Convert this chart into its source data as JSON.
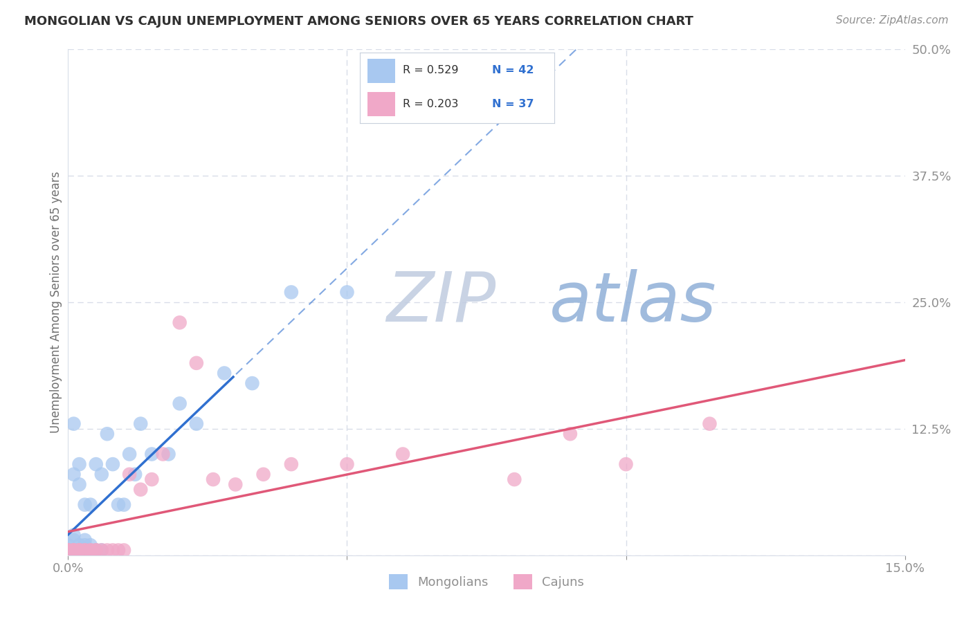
{
  "title": "MONGOLIAN VS CAJUN UNEMPLOYMENT AMONG SENIORS OVER 65 YEARS CORRELATION CHART",
  "source": "Source: ZipAtlas.com",
  "ylabel": "Unemployment Among Seniors over 65 years",
  "xlim": [
    0,
    0.15
  ],
  "ylim": [
    0,
    0.5
  ],
  "mongolian_R": 0.529,
  "mongolian_N": 42,
  "cajun_R": 0.203,
  "cajun_N": 37,
  "mongolian_color": "#a8c8f0",
  "cajun_color": "#f0a8c8",
  "mongolian_line_color": "#3070d0",
  "cajun_line_color": "#e05878",
  "title_color": "#303030",
  "source_color": "#909090",
  "ylabel_color": "#707070",
  "tick_color": "#909090",
  "background_color": "#ffffff",
  "watermark_zip_color": "#c0cce0",
  "watermark_atlas_color": "#90b0d8",
  "grid_color": "#d8dde8",
  "mongolian_x": [
    0.0,
    0.0,
    0.0,
    0.0,
    0.0,
    0.001,
    0.001,
    0.001,
    0.001,
    0.001,
    0.002,
    0.002,
    0.002,
    0.002,
    0.002,
    0.003,
    0.003,
    0.003,
    0.003,
    0.003,
    0.004,
    0.004,
    0.004,
    0.005,
    0.005,
    0.006,
    0.006,
    0.007,
    0.008,
    0.009,
    0.01,
    0.011,
    0.012,
    0.013,
    0.015,
    0.018,
    0.02,
    0.023,
    0.028,
    0.033,
    0.04,
    0.05
  ],
  "mongolian_y": [
    0.005,
    0.005,
    0.01,
    0.005,
    0.005,
    0.005,
    0.015,
    0.02,
    0.08,
    0.13,
    0.005,
    0.005,
    0.01,
    0.07,
    0.09,
    0.005,
    0.005,
    0.01,
    0.015,
    0.05,
    0.005,
    0.01,
    0.05,
    0.005,
    0.09,
    0.005,
    0.08,
    0.12,
    0.09,
    0.05,
    0.05,
    0.1,
    0.08,
    0.13,
    0.1,
    0.1,
    0.15,
    0.13,
    0.18,
    0.17,
    0.26,
    0.26
  ],
  "cajun_x": [
    0.0,
    0.0,
    0.0,
    0.0,
    0.001,
    0.001,
    0.001,
    0.002,
    0.002,
    0.002,
    0.003,
    0.003,
    0.004,
    0.004,
    0.005,
    0.005,
    0.006,
    0.007,
    0.008,
    0.009,
    0.01,
    0.011,
    0.013,
    0.015,
    0.017,
    0.02,
    0.023,
    0.026,
    0.03,
    0.035,
    0.04,
    0.05,
    0.06,
    0.08,
    0.09,
    0.1,
    0.115
  ],
  "cajun_y": [
    0.005,
    0.005,
    0.005,
    0.005,
    0.005,
    0.005,
    0.005,
    0.005,
    0.005,
    0.005,
    0.005,
    0.005,
    0.005,
    0.005,
    0.005,
    0.005,
    0.005,
    0.005,
    0.005,
    0.005,
    0.005,
    0.08,
    0.065,
    0.075,
    0.1,
    0.23,
    0.19,
    0.075,
    0.07,
    0.08,
    0.09,
    0.09,
    0.1,
    0.075,
    0.12,
    0.09,
    0.13
  ],
  "solid_cutoff_mongolian": 0.03,
  "solid_cutoff_cajun": 0.15,
  "yticks": [
    0.0,
    0.125,
    0.25,
    0.375,
    0.5
  ],
  "ytick_labels": [
    "",
    "12.5%",
    "25.0%",
    "37.5%",
    "50.0%"
  ],
  "xticks": [
    0.0,
    0.05,
    0.1,
    0.15
  ],
  "xtick_labels": [
    "0.0%",
    "",
    "",
    "15.0%"
  ]
}
